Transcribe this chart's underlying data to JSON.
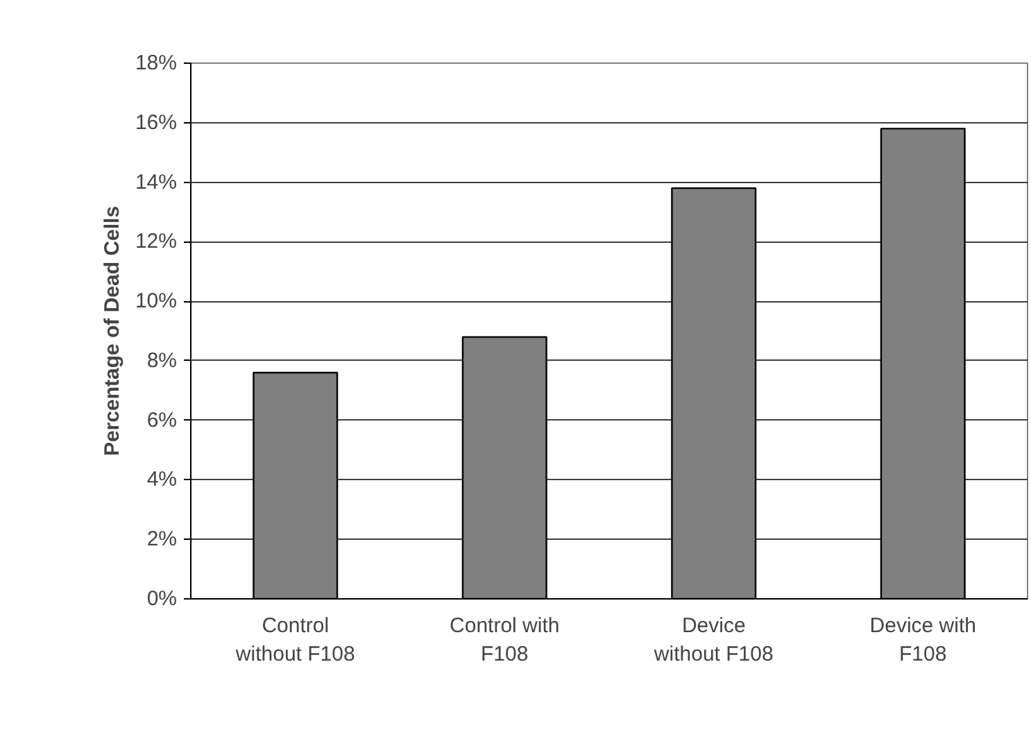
{
  "chart_data": {
    "type": "bar",
    "ylabel": "Percentage of Dead Cells",
    "categories": [
      "Control without F108",
      "Control with F108",
      "Device without F108",
      "Device with F108"
    ],
    "values": [
      7.6,
      8.8,
      13.8,
      15.8
    ],
    "color": "#808080",
    "ylim": [
      0,
      18
    ],
    "yticks": [
      {
        "value": 0,
        "label": "0%"
      },
      {
        "value": 2,
        "label": "2%"
      },
      {
        "value": 4,
        "label": "4%"
      },
      {
        "value": 6,
        "label": "6%"
      },
      {
        "value": 8,
        "label": "8%"
      },
      {
        "value": 10,
        "label": "10%"
      },
      {
        "value": 12,
        "label": "12%"
      },
      {
        "value": 14,
        "label": "14%"
      },
      {
        "value": 16,
        "label": "16%"
      },
      {
        "value": 18,
        "label": "18%"
      }
    ],
    "grid": "y"
  }
}
